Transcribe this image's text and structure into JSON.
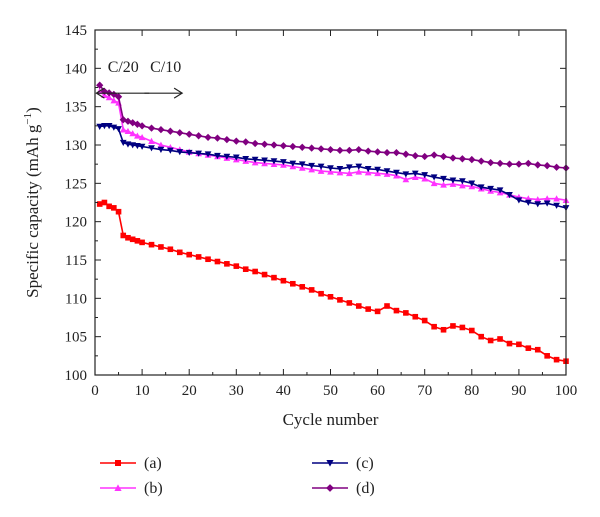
{
  "chart_data": {
    "type": "line",
    "xlabel": "Cycle number",
    "ylabel": "Specific capacity (mAh g",
    "ylabel_sup": "−1",
    "ylabel_close": ")",
    "xlim": [
      0,
      100
    ],
    "ylim": [
      100,
      145
    ],
    "x_ticks": [
      0,
      10,
      20,
      30,
      40,
      50,
      60,
      70,
      80,
      90,
      100
    ],
    "y_ticks": [
      100,
      105,
      110,
      115,
      120,
      125,
      130,
      135,
      140,
      145
    ],
    "grid": false,
    "legend_placement": "bottom",
    "annotations": [
      {
        "text": "C/20",
        "x": 6,
        "y": 139.5,
        "arrow": "left"
      },
      {
        "text": "C/10",
        "x": 15,
        "y": 139.5,
        "arrow": "right"
      }
    ],
    "series": [
      {
        "name": "(a)",
        "color": "#ff0000",
        "marker": "square",
        "x": [
          1,
          2,
          3,
          4,
          5,
          6,
          7,
          8,
          9,
          10,
          12,
          14,
          16,
          18,
          20,
          22,
          24,
          26,
          28,
          30,
          32,
          34,
          36,
          38,
          40,
          42,
          44,
          46,
          48,
          50,
          52,
          54,
          56,
          58,
          60,
          62,
          64,
          66,
          68,
          70,
          72,
          74,
          76,
          78,
          80,
          82,
          84,
          86,
          88,
          90,
          92,
          94,
          96,
          98,
          100
        ],
        "values": [
          122.3,
          122.5,
          122.0,
          121.8,
          121.3,
          118.2,
          117.9,
          117.7,
          117.5,
          117.3,
          117.0,
          116.7,
          116.4,
          116.0,
          115.7,
          115.4,
          115.1,
          114.8,
          114.5,
          114.2,
          113.8,
          113.5,
          113.1,
          112.7,
          112.3,
          111.9,
          111.5,
          111.1,
          110.6,
          110.2,
          109.8,
          109.4,
          109.0,
          108.6,
          108.3,
          109.0,
          108.4,
          108.1,
          107.6,
          107.1,
          106.3,
          105.9,
          106.4,
          106.2,
          105.8,
          105.0,
          104.5,
          104.7,
          104.1,
          104.0,
          103.5,
          103.3,
          102.5,
          102.0,
          101.8
        ]
      },
      {
        "name": "(b)",
        "color": "#ff33ff",
        "marker": "triangle-up",
        "x": [
          1,
          2,
          3,
          4,
          5,
          6,
          7,
          8,
          9,
          10,
          12,
          14,
          16,
          18,
          20,
          22,
          24,
          26,
          28,
          30,
          32,
          34,
          36,
          38,
          40,
          42,
          44,
          46,
          48,
          50,
          52,
          54,
          56,
          58,
          60,
          62,
          64,
          66,
          68,
          70,
          72,
          74,
          76,
          78,
          80,
          82,
          84,
          86,
          88,
          90,
          92,
          94,
          96,
          98,
          100
        ],
        "values": [
          137.0,
          136.5,
          136.2,
          135.8,
          135.5,
          132.0,
          131.8,
          131.5,
          131.2,
          131.0,
          130.5,
          130.0,
          129.7,
          129.4,
          129.1,
          128.9,
          128.7,
          128.5,
          128.3,
          128.1,
          127.9,
          127.7,
          127.6,
          127.5,
          127.4,
          127.2,
          127.0,
          126.8,
          126.6,
          126.5,
          126.4,
          126.3,
          126.5,
          126.4,
          126.3,
          126.2,
          126.0,
          125.5,
          125.8,
          125.6,
          125.0,
          124.8,
          124.9,
          124.7,
          124.6,
          124.3,
          124.0,
          123.8,
          123.5,
          123.2,
          123.0,
          122.9,
          123.0,
          123.0,
          122.8
        ]
      },
      {
        "name": "(c)",
        "color": "#000080",
        "marker": "triangle-down",
        "x": [
          1,
          2,
          3,
          4,
          5,
          6,
          7,
          8,
          9,
          10,
          12,
          14,
          16,
          18,
          20,
          22,
          24,
          26,
          28,
          30,
          32,
          34,
          36,
          38,
          40,
          42,
          44,
          46,
          48,
          50,
          52,
          54,
          56,
          58,
          60,
          62,
          64,
          66,
          68,
          70,
          72,
          74,
          76,
          78,
          80,
          82,
          84,
          86,
          88,
          90,
          92,
          94,
          96,
          98,
          100
        ],
        "values": [
          132.4,
          132.5,
          132.5,
          132.3,
          132.1,
          130.3,
          130.1,
          130.0,
          129.9,
          129.8,
          129.6,
          129.4,
          129.3,
          129.1,
          129.0,
          128.9,
          128.8,
          128.6,
          128.5,
          128.4,
          128.2,
          128.1,
          128.0,
          127.9,
          127.8,
          127.6,
          127.5,
          127.3,
          127.2,
          127.0,
          126.9,
          127.1,
          127.2,
          126.9,
          126.8,
          126.6,
          126.4,
          126.2,
          126.3,
          126.1,
          125.8,
          125.6,
          125.4,
          125.3,
          125.0,
          124.5,
          124.3,
          124.1,
          123.5,
          122.8,
          122.5,
          122.3,
          122.4,
          122.1,
          121.8
        ]
      },
      {
        "name": "(d)",
        "color": "#800080",
        "marker": "diamond",
        "x": [
          1,
          2,
          3,
          4,
          5,
          6,
          7,
          8,
          9,
          10,
          12,
          14,
          16,
          18,
          20,
          22,
          24,
          26,
          28,
          30,
          32,
          34,
          36,
          38,
          40,
          42,
          44,
          46,
          48,
          50,
          52,
          54,
          56,
          58,
          60,
          62,
          64,
          66,
          68,
          70,
          72,
          74,
          76,
          78,
          80,
          82,
          84,
          86,
          88,
          90,
          92,
          94,
          96,
          98,
          100
        ],
        "values": [
          137.8,
          137.0,
          136.8,
          136.6,
          136.3,
          133.3,
          133.1,
          132.9,
          132.7,
          132.5,
          132.2,
          132.0,
          131.8,
          131.6,
          131.4,
          131.2,
          131.0,
          130.9,
          130.7,
          130.5,
          130.4,
          130.2,
          130.1,
          130.0,
          129.9,
          129.8,
          129.7,
          129.6,
          129.5,
          129.4,
          129.3,
          129.3,
          129.4,
          129.2,
          129.1,
          129.0,
          129.0,
          128.8,
          128.6,
          128.5,
          128.7,
          128.5,
          128.3,
          128.2,
          128.1,
          127.9,
          127.7,
          127.6,
          127.5,
          127.5,
          127.6,
          127.4,
          127.3,
          127.1,
          127.0
        ]
      }
    ]
  }
}
